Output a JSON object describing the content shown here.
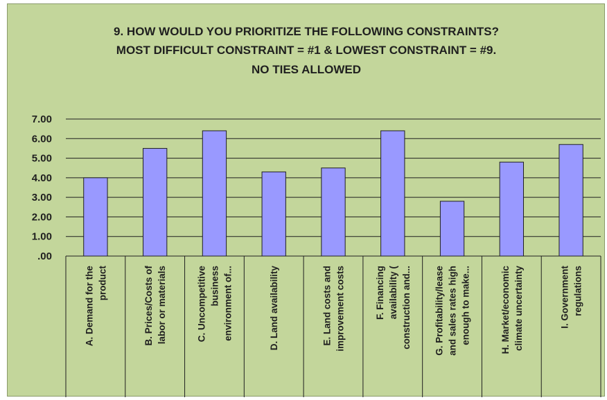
{
  "chart_data": {
    "type": "bar",
    "title_lines": [
      "9. HOW WOULD YOU PRIORITIZE THE FOLLOWING CONSTRAINTS?",
      "MOST DIFFICULT CONSTRAINT = #1 & LOWEST CONSTRAINT = #9.",
      "NO TIES ALLOWED"
    ],
    "categories": [
      [
        "A. Demand for the",
        "product"
      ],
      [
        "B. Prices/Costs of",
        "labor or materials"
      ],
      [
        "C. Uncompetitive",
        "business",
        "environment of..."
      ],
      [
        "D. Land availability"
      ],
      [
        "E. Land costs and",
        "improvement costs"
      ],
      [
        "F. Financing",
        "availability (",
        "construction and..."
      ],
      [
        "G. Profitability/lease",
        "and sales rates high",
        "enough to make..."
      ],
      [
        "H. Market/economic",
        "climate uncertainty"
      ],
      [
        "I. Government",
        "regulations"
      ]
    ],
    "values": [
      4.0,
      5.5,
      6.4,
      4.3,
      4.5,
      6.4,
      2.8,
      4.8,
      5.7
    ],
    "y_ticks": [
      "7.00",
      "6.00",
      "5.00",
      "4.00",
      "3.00",
      "2.00",
      "1.00",
      ".00"
    ],
    "ylim": [
      0,
      7
    ],
    "grid": true,
    "colors": {
      "background": "#c3d69b",
      "bar_fill": "#9999ff",
      "bar_stroke": "#1f1f1f"
    }
  }
}
